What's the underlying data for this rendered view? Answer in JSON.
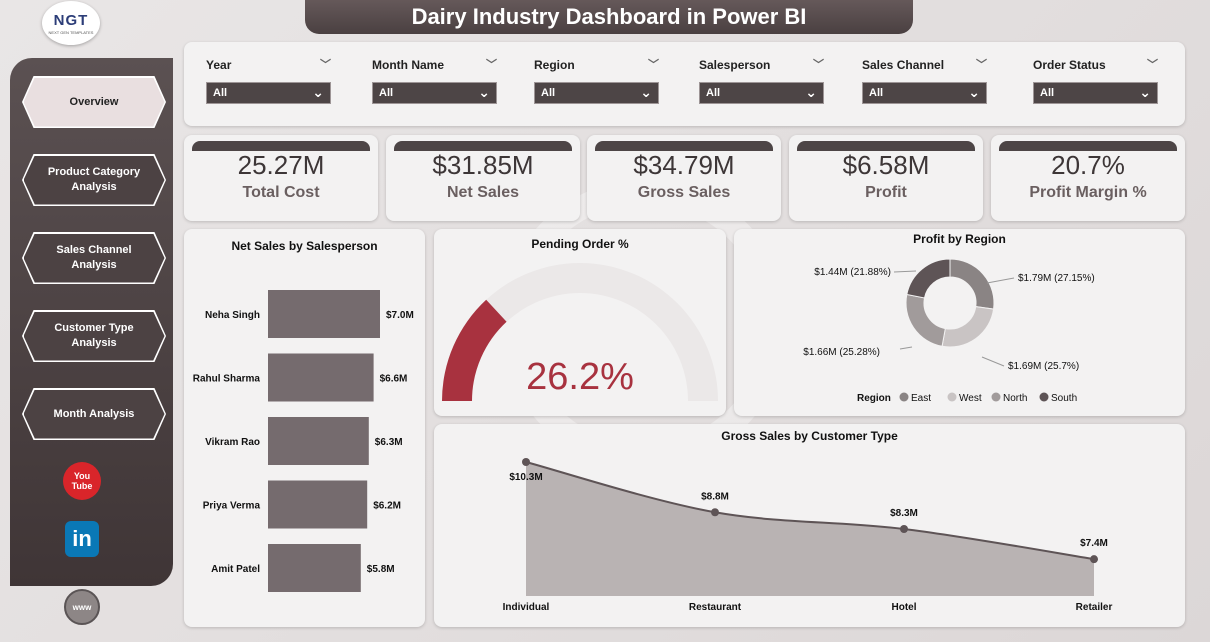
{
  "title": "Dairy Industry Dashboard in Power BI",
  "logo": {
    "text": "NGT",
    "subtitle": "NEXT GEN TEMPLATES"
  },
  "nav": [
    {
      "label": "Overview",
      "active": true
    },
    {
      "label": "Product Category Analysis",
      "active": false
    },
    {
      "label": "Sales Channel Analysis",
      "active": false
    },
    {
      "label": "Customer Type Analysis",
      "active": false
    },
    {
      "label": "Month Analysis",
      "active": false
    }
  ],
  "social": {
    "youtube": "You Tube",
    "linkedin": "in",
    "web": "www"
  },
  "filters": [
    {
      "label": "Year",
      "value": "All"
    },
    {
      "label": "Month Name",
      "value": "All"
    },
    {
      "label": "Region",
      "value": "All"
    },
    {
      "label": "Salesperson",
      "value": "All"
    },
    {
      "label": "Sales Channel",
      "value": "All"
    },
    {
      "label": "Order Status",
      "value": "All"
    }
  ],
  "kpis": [
    {
      "value": "25.27M",
      "label": "Total Cost"
    },
    {
      "value": "$31.85M",
      "label": "Net Sales"
    },
    {
      "value": "$34.79M",
      "label": "Gross Sales"
    },
    {
      "value": "$6.58M",
      "label": "Profit"
    },
    {
      "value": "20.7%",
      "label": "Profit Margin %"
    }
  ],
  "colors": {
    "accent": "#4d4546",
    "bar": "#756b6e",
    "gauge": "#a8323f",
    "area": "#b9b3b3"
  },
  "chart_data": [
    {
      "type": "bar",
      "title": "Net Sales by Salesperson",
      "categories": [
        "Neha Singh",
        "Rahul Sharma",
        "Vikram Rao",
        "Priya Verma",
        "Amit Patel"
      ],
      "values": [
        7.0,
        6.6,
        6.3,
        6.2,
        5.8
      ],
      "labels": [
        "$7.0M",
        "$6.6M",
        "$6.3M",
        "$6.2M",
        "$5.8M"
      ],
      "xlim": [
        0,
        7.0
      ]
    },
    {
      "type": "gauge",
      "title": "Pending Order %",
      "value": 26.2,
      "label": "26.2%",
      "range": [
        0,
        100
      ]
    },
    {
      "type": "pie",
      "title": "Profit by Region",
      "legend_title": "Region",
      "slices": [
        {
          "name": "East",
          "value": 1.79,
          "label": "$1.79M (27.15%)",
          "color": "#8a8484"
        },
        {
          "name": "West",
          "value": 1.69,
          "label": "$1.69M (25.7%)",
          "color": "#c9c4c4"
        },
        {
          "name": "North",
          "value": 1.66,
          "label": "$1.66M (25.28%)",
          "color": "#a19b9b"
        },
        {
          "name": "South",
          "value": 1.44,
          "label": "$1.44M (21.88%)",
          "color": "#5e5456"
        }
      ]
    },
    {
      "type": "area",
      "title": "Gross Sales by Customer Type",
      "categories": [
        "Individual",
        "Restaurant",
        "Hotel",
        "Retailer"
      ],
      "values": [
        10.3,
        8.8,
        8.3,
        7.4
      ],
      "labels": [
        "$10.3M",
        "$8.8M",
        "$8.3M",
        "$7.4M"
      ],
      "ylim": [
        6.3,
        10.3
      ]
    }
  ]
}
